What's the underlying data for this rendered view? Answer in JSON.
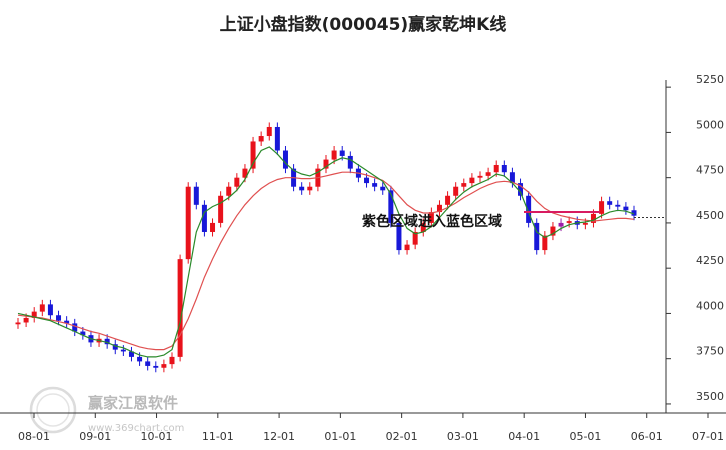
{
  "chart_data": {
    "type": "candlestick",
    "title": "上证小盘指数(000045)赢家乾坤K线",
    "annotation": "紫色区域进入蓝色区域",
    "x_ticks": [
      "08-01",
      "09-01",
      "10-01",
      "11-01",
      "12-01",
      "01-01",
      "02-01",
      "03-01",
      "04-01",
      "05-01",
      "06-01",
      "07-01"
    ],
    "y_ticks": [
      3500,
      3750,
      4000,
      4250,
      4500,
      4750,
      5000,
      5250
    ],
    "ylim": [
      3450,
      5400
    ],
    "current_level": 4530,
    "colors": {
      "up": "#e8121b",
      "down": "#1818d8",
      "purple": "#9b1fa8",
      "green_line": "#2a8a2a",
      "red_line": "#e05050",
      "axis": "#333333",
      "annotation_line": "#d81b60"
    },
    "series": [
      {
        "name": "close",
        "values": [
          3950,
          3975,
          4010,
          4050,
          3990,
          3960,
          3945,
          3900,
          3880,
          3840,
          3860,
          3830,
          3800,
          3790,
          3760,
          3735,
          3710,
          3700,
          3720,
          3760,
          4300,
          4700,
          4600,
          4450,
          4500,
          4650,
          4700,
          4750,
          4800,
          4950,
          4980,
          5030,
          4900,
          4800,
          4700,
          4680,
          4700,
          4800,
          4850,
          4900,
          4870,
          4800,
          4750,
          4720,
          4700,
          4680,
          4500,
          4350,
          4380,
          4450,
          4500,
          4560,
          4600,
          4650,
          4700,
          4720,
          4750,
          4760,
          4780,
          4820,
          4780,
          4720,
          4650,
          4500,
          4350,
          4430,
          4480,
          4500,
          4510,
          4490,
          4500,
          4550,
          4620,
          4600,
          4590,
          4570,
          4540
        ]
      },
      {
        "name": "green_line",
        "values": [
          4000,
          3990,
          3980,
          3970,
          3960,
          3940,
          3920,
          3900,
          3880,
          3860,
          3850,
          3840,
          3820,
          3810,
          3790,
          3770,
          3760,
          3760,
          3770,
          3800,
          3950,
          4200,
          4450,
          4560,
          4590,
          4610,
          4640,
          4680,
          4740,
          4830,
          4900,
          4920,
          4880,
          4830,
          4790,
          4770,
          4760,
          4780,
          4810,
          4840,
          4860,
          4850,
          4820,
          4790,
          4760,
          4730,
          4660,
          4550,
          4470,
          4440,
          4450,
          4480,
          4530,
          4580,
          4630,
          4670,
          4700,
          4720,
          4740,
          4770,
          4760,
          4720,
          4670,
          4560,
          4450,
          4420,
          4440,
          4470,
          4490,
          4500,
          4505,
          4515,
          4540,
          4560,
          4570,
          4565,
          4550
        ]
      },
      {
        "name": "red_line",
        "values": [
          3990,
          3985,
          3980,
          3975,
          3965,
          3955,
          3945,
          3930,
          3915,
          3900,
          3890,
          3875,
          3860,
          3845,
          3830,
          3815,
          3805,
          3800,
          3800,
          3820,
          3880,
          3970,
          4080,
          4200,
          4300,
          4390,
          4470,
          4540,
          4600,
          4650,
          4690,
          4720,
          4740,
          4750,
          4750,
          4745,
          4745,
          4750,
          4760,
          4770,
          4780,
          4780,
          4775,
          4765,
          4750,
          4735,
          4700,
          4650,
          4600,
          4570,
          4555,
          4555,
          4565,
          4585,
          4610,
          4640,
          4665,
          4690,
          4710,
          4725,
          4730,
          4725,
          4705,
          4670,
          4620,
          4580,
          4555,
          4540,
          4530,
          4520,
          4515,
          4510,
          4515,
          4520,
          4525,
          4525,
          4520
        ]
      }
    ],
    "grid": false,
    "legend": "none"
  },
  "watermark": {
    "brand": "赢家江恩软件",
    "url": "www.369chart.com",
    "seal_top": "赢家",
    "seal_bottom": "财富"
  }
}
